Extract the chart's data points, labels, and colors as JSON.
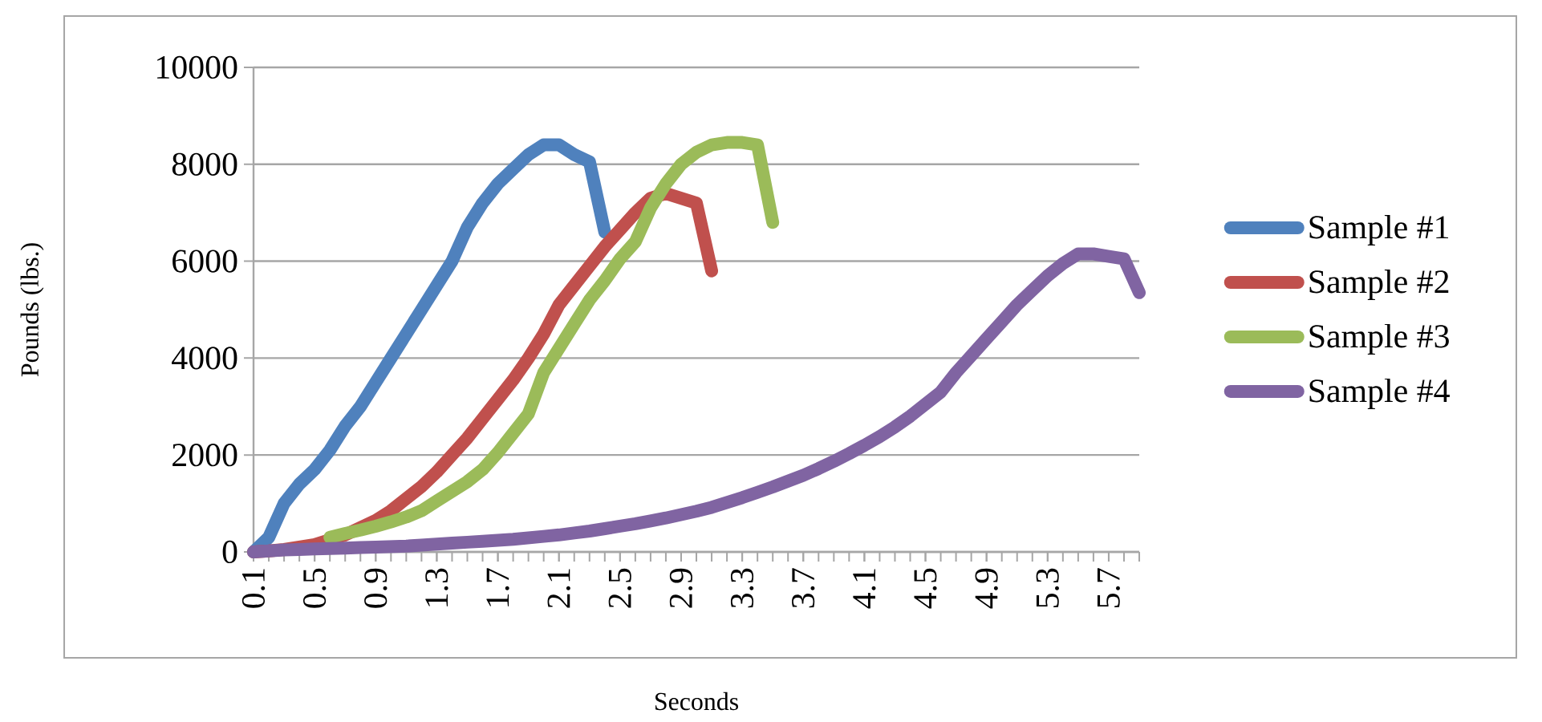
{
  "chart_data": {
    "type": "line",
    "xlabel": "Seconds",
    "ylabel": "Pounds (lbs.)",
    "x": [
      0.1,
      0.2,
      0.3,
      0.4,
      0.5,
      0.6,
      0.7,
      0.8,
      0.9,
      1.0,
      1.1,
      1.2,
      1.3,
      1.4,
      1.5,
      1.6,
      1.7,
      1.8,
      1.9,
      2.0,
      2.1,
      2.2,
      2.3,
      2.4,
      2.5,
      2.6,
      2.7,
      2.8,
      2.9,
      3.0,
      3.1,
      3.2,
      3.3,
      3.4,
      3.5,
      3.6,
      3.7,
      3.8,
      3.9,
      4.0,
      4.1,
      4.2,
      4.3,
      4.4,
      4.5,
      4.6,
      4.7,
      4.8,
      4.9,
      5.0,
      5.1,
      5.2,
      5.3,
      5.4,
      5.5,
      5.6,
      5.7,
      5.8,
      5.9
    ],
    "series": [
      {
        "name": "Sample #1",
        "color": "#4f81bd",
        "values": [
          0,
          300,
          1000,
          1400,
          1700,
          2100,
          2600,
          3000,
          3500,
          4000,
          4500,
          5000,
          5500,
          6000,
          6700,
          7200,
          7600,
          7900,
          8200,
          8400,
          8400,
          8200,
          8050,
          6600,
          null,
          null,
          null,
          null,
          null,
          null,
          null,
          null,
          null,
          null,
          null,
          null,
          null,
          null,
          null,
          null,
          null,
          null,
          null,
          null,
          null,
          null,
          null,
          null,
          null,
          null,
          null,
          null,
          null,
          null,
          null,
          null,
          null,
          null,
          null
        ]
      },
      {
        "name": "Sample #2",
        "color": "#c0504d",
        "values": [
          0,
          20,
          50,
          100,
          150,
          250,
          350,
          500,
          650,
          850,
          1100,
          1350,
          1650,
          2000,
          2350,
          2750,
          3150,
          3550,
          4000,
          4500,
          5100,
          5500,
          5900,
          6300,
          6650,
          7000,
          7300,
          7400,
          7300,
          7200,
          5800,
          null,
          null,
          null,
          null,
          null,
          null,
          null,
          null,
          null,
          null,
          null,
          null,
          null,
          null,
          null,
          null,
          null,
          null,
          null,
          null,
          null,
          null,
          null,
          null,
          null,
          null,
          null,
          null
        ]
      },
      {
        "name": "Sample #3",
        "color": "#9bbb59",
        "values": [
          null,
          null,
          null,
          null,
          null,
          300,
          380,
          450,
          530,
          620,
          720,
          850,
          1050,
          1250,
          1450,
          1700,
          2050,
          2450,
          2850,
          3700,
          4200,
          4700,
          5200,
          5600,
          6050,
          6400,
          7100,
          7600,
          8000,
          8250,
          8400,
          8450,
          8450,
          8400,
          6800,
          null,
          null,
          null,
          null,
          null,
          null,
          null,
          null,
          null,
          null,
          null,
          null,
          null,
          null,
          null,
          null,
          null,
          null,
          null,
          null,
          null,
          null,
          null,
          null
        ]
      },
      {
        "name": "Sample #4",
        "color": "#8064a2",
        "values": [
          0,
          20,
          40,
          50,
          60,
          70,
          80,
          90,
          100,
          110,
          120,
          140,
          160,
          180,
          200,
          220,
          240,
          260,
          290,
          320,
          350,
          390,
          430,
          480,
          530,
          580,
          640,
          700,
          770,
          840,
          920,
          1020,
          1120,
          1230,
          1340,
          1460,
          1580,
          1720,
          1870,
          2030,
          2200,
          2380,
          2580,
          2800,
          3050,
          3300,
          3700,
          4050,
          4400,
          4750,
          5100,
          5400,
          5700,
          5950,
          6150,
          6150,
          6100,
          6050,
          5350
        ]
      }
    ],
    "xlim": [
      0.1,
      5.9
    ],
    "xticks": [
      0.1,
      0.5,
      0.9,
      1.3,
      1.7,
      2.1,
      2.5,
      2.9,
      3.3,
      3.7,
      4.1,
      4.5,
      4.9,
      5.3,
      5.7
    ],
    "ylim": [
      0,
      10000
    ],
    "yticks": [
      0,
      2000,
      4000,
      6000,
      8000,
      10000
    ],
    "grid": "y",
    "legend": "right"
  }
}
